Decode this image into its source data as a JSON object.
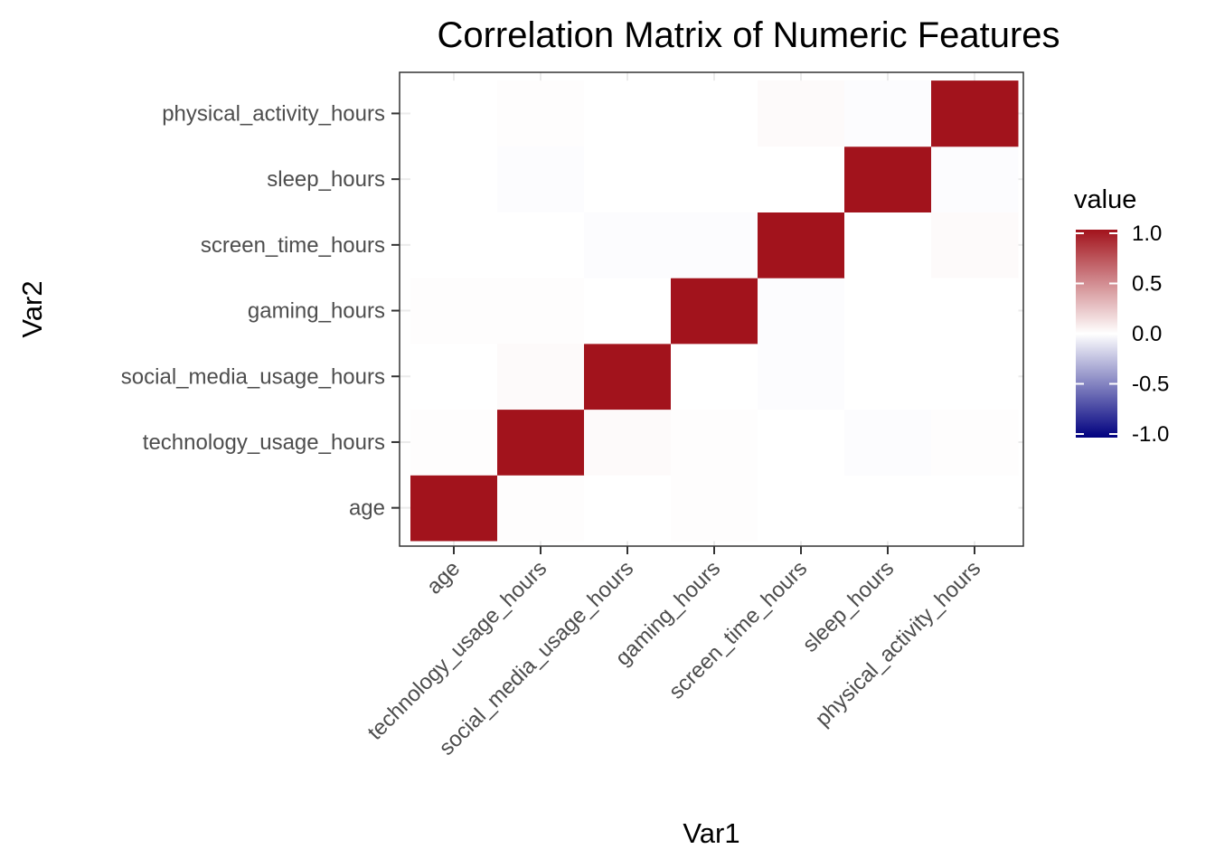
{
  "chart_data": {
    "type": "heatmap",
    "title": "Correlation Matrix of Numeric Features",
    "xlabel": "Var1",
    "ylabel": "Var2",
    "x_categories": [
      "age",
      "technology_usage_hours",
      "social_media_usage_hours",
      "gaming_hours",
      "screen_time_hours",
      "sleep_hours",
      "physical_activity_hours"
    ],
    "y_categories": [
      "age",
      "technology_usage_hours",
      "social_media_usage_hours",
      "gaming_hours",
      "screen_time_hours",
      "sleep_hours",
      "physical_activity_hours"
    ],
    "values": [
      [
        1.0,
        0.01,
        0.0,
        0.01,
        0.0,
        0.0,
        0.0
      ],
      [
        0.01,
        1.0,
        0.02,
        0.01,
        0.0,
        -0.01,
        0.01
      ],
      [
        0.0,
        0.02,
        1.0,
        0.0,
        -0.01,
        0.0,
        0.0
      ],
      [
        0.01,
        0.01,
        0.0,
        1.0,
        -0.01,
        0.0,
        0.0
      ],
      [
        0.0,
        0.0,
        -0.01,
        -0.01,
        1.0,
        0.0,
        0.02
      ],
      [
        0.0,
        -0.01,
        0.0,
        0.0,
        0.0,
        1.0,
        -0.01
      ],
      [
        0.0,
        0.01,
        0.0,
        0.0,
        0.02,
        -0.01,
        1.0
      ]
    ],
    "legend": {
      "title": "value",
      "ticks": [
        1.0,
        0.5,
        0.0,
        -0.5,
        -1.0
      ],
      "tick_labels": [
        "1.0",
        "0.5",
        "0.0",
        "-0.5",
        "-1.0"
      ],
      "range": [
        -1,
        1
      ],
      "placement": "right"
    },
    "colors": {
      "low": "#00007f",
      "mid": "#ffffff",
      "high": "#a2131c"
    },
    "grid": true
  }
}
